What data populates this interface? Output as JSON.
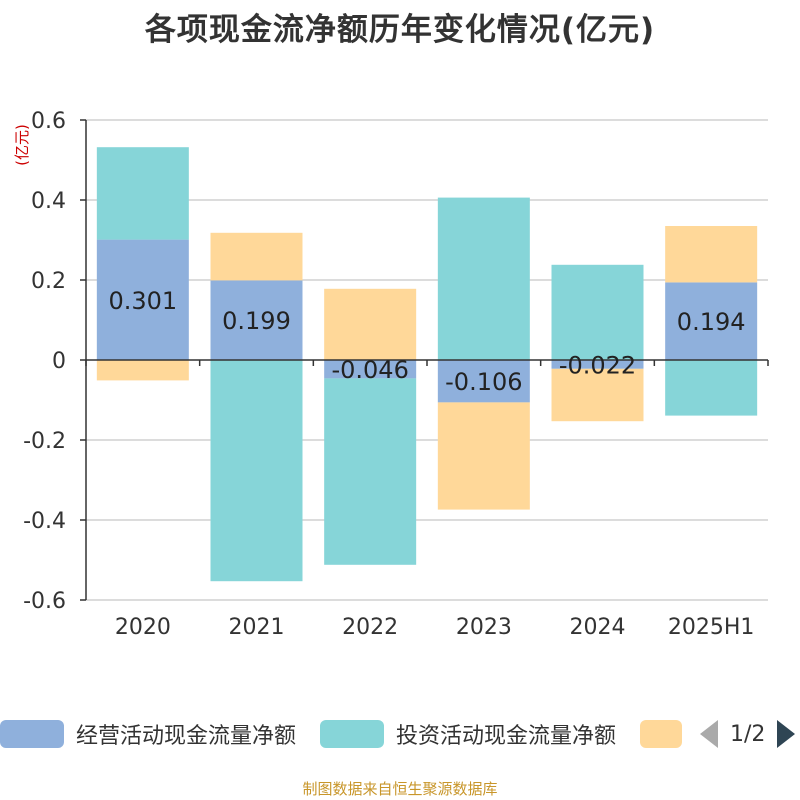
{
  "chart_data": {
    "type": "bar",
    "stacked": true,
    "title": "各项现金流净额历年变化情况(亿元)",
    "ylabel": "(亿元)",
    "categories": [
      "2020",
      "2021",
      "2022",
      "2023",
      "2024",
      "2025H1"
    ],
    "ylim": [
      -0.6,
      0.6
    ],
    "yticks": [
      0.6,
      0.4,
      0.2,
      0,
      -0.2,
      -0.4,
      -0.6
    ],
    "ytick_labels": [
      "0.6",
      "0.4",
      "0.2",
      "0",
      "-0.2",
      "-0.4",
      "-0.6"
    ],
    "grid": true,
    "legend_position": "bottom",
    "series": [
      {
        "name": "经营活动现金流量净额",
        "color": "#8fb0dc",
        "show_labels": true,
        "values": [
          0.301,
          0.199,
          -0.046,
          -0.106,
          -0.022,
          0.194
        ],
        "labels": [
          "0.301",
          "0.199",
          "-0.046",
          "-0.106",
          "-0.022",
          "0.194"
        ]
      },
      {
        "name": "投资活动现金流量净额",
        "color": "#86d5d8",
        "show_labels": false,
        "values": [
          0.231,
          -0.553,
          -0.466,
          0.406,
          0.238,
          -0.139
        ]
      },
      {
        "name": "",
        "color": "#ffd899",
        "show_labels": false,
        "values": [
          -0.051,
          0.119,
          0.178,
          -0.268,
          -0.131,
          0.141
        ]
      }
    ]
  },
  "legend": {
    "items": [
      "经营活动现金流量净额",
      "投资活动现金流量净额",
      ""
    ],
    "page": "1/2"
  },
  "source": "制图数据来自恒生聚源数据库"
}
